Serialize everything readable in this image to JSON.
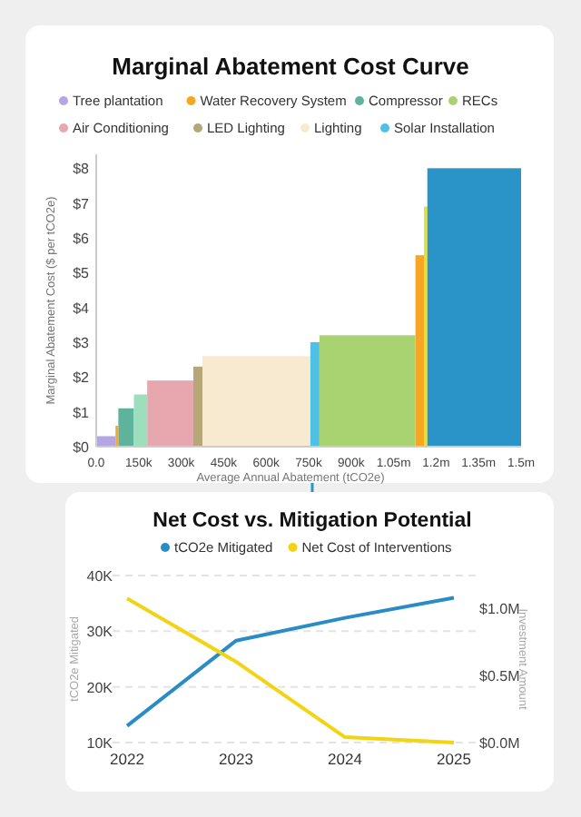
{
  "chart_data": [
    {
      "type": "bar",
      "title": "Marginal Abatement Cost Curve",
      "xlabel": "Average Annual Abatement (tCO2e)",
      "ylabel": "Marginal Abatement Cost ($ per tCO2e)",
      "legend": "top",
      "xlim": [
        0,
        1500000
      ],
      "ylim": [
        0,
        8.4
      ],
      "xticks": [
        {
          "value": 0,
          "label": "0.0"
        },
        {
          "value": 150000,
          "label": "150k"
        },
        {
          "value": 300000,
          "label": "300k"
        },
        {
          "value": 450000,
          "label": "450k"
        },
        {
          "value": 600000,
          "label": "600k"
        },
        {
          "value": 750000,
          "label": "750k"
        },
        {
          "value": 900000,
          "label": "900k"
        },
        {
          "value": 1050000,
          "label": "1.05m"
        },
        {
          "value": 1200000,
          "label": "1.2m"
        },
        {
          "value": 1350000,
          "label": "1.35m"
        },
        {
          "value": 1500000,
          "label": "1.5m"
        }
      ],
      "yticks": [
        {
          "value": 0,
          "label": "$0"
        },
        {
          "value": 1,
          "label": "$1"
        },
        {
          "value": 2,
          "label": "$2"
        },
        {
          "value": 3,
          "label": "$3"
        },
        {
          "value": 4,
          "label": "$4"
        },
        {
          "value": 5,
          "label": "$5"
        },
        {
          "value": 6,
          "label": "$6"
        },
        {
          "value": 7,
          "label": "$7"
        },
        {
          "value": 8,
          "label": "$8"
        }
      ],
      "series": [
        {
          "name": "Tree plantation",
          "color": "#b3a6e2",
          "x": [
            34000
          ],
          "values": [
            0.3
          ]
        },
        {
          "name": "Water Recovery System",
          "color": "#f5a623",
          "x": [
            1142000
          ],
          "values": [
            5.5
          ]
        },
        {
          "name": "Compressor",
          "color": "#5fb39c",
          "x": [
            105500
          ],
          "values": [
            1.1
          ]
        },
        {
          "name": "RECs",
          "color": "#a9d371",
          "x": [
            957500
          ],
          "values": [
            3.2
          ]
        },
        {
          "name": "Air Conditioning",
          "color": "#e7a7ae",
          "x": [
            261500
          ],
          "values": [
            1.9
          ]
        },
        {
          "name": "LED Lighting",
          "color": "#b5a778",
          "x": [
            359000
          ],
          "values": [
            2.3
          ]
        },
        {
          "name": "Lighting",
          "color": "#f8ead0",
          "x": [
            565500
          ],
          "values": [
            2.6
          ]
        },
        {
          "name": "Solar Installation",
          "color": "#4fc0e6",
          "x": [
            772000
          ],
          "values": [
            3.0
          ]
        },
        {
          "color": "#f5a832",
          "x": [
            73000
          ],
          "values": [
            0.6
          ]
        },
        {
          "color": "#9ddfbd",
          "x": [
            156500
          ],
          "values": [
            1.5
          ]
        },
        {
          "color": "#e6e032",
          "x": [
            1163000
          ],
          "values": [
            6.9
          ]
        },
        {
          "color": "#2a94c9",
          "x": [
            1334500
          ],
          "values": [
            8.0
          ]
        }
      ]
    },
    {
      "type": "line",
      "title": "Net Cost vs. Mitigation Potential",
      "ylabel": "tCO2e Mitigated",
      "y2label": "Investment Amount",
      "legend": "top",
      "grid": "y",
      "marker": "none",
      "categories": [
        "2022",
        "2023",
        "2024",
        "2025"
      ],
      "ylim": [
        10000,
        40000
      ],
      "yticks": [
        {
          "value": 10000,
          "label": "10K"
        },
        {
          "value": 20000,
          "label": "20K"
        },
        {
          "value": 30000,
          "label": "30K"
        },
        {
          "value": 40000,
          "label": "40K"
        }
      ],
      "y2lim": [
        0,
        1240000
      ],
      "y2ticks": [
        {
          "value": 0,
          "label": "$0.0M"
        },
        {
          "value": 500000,
          "label": "$0.5M"
        },
        {
          "value": 1000000,
          "label": "$1.0M"
        }
      ],
      "series": [
        {
          "name": "tCO2e Mitigated",
          "color": "#2a8cc4",
          "values": [
            13000,
            28300,
            32400,
            36000
          ]
        },
        {
          "name": "Net Cost of Interventions",
          "axis": "y2",
          "color": "#f2d414",
          "values": [
            1070000,
            600000,
            40000,
            0
          ]
        }
      ]
    }
  ]
}
